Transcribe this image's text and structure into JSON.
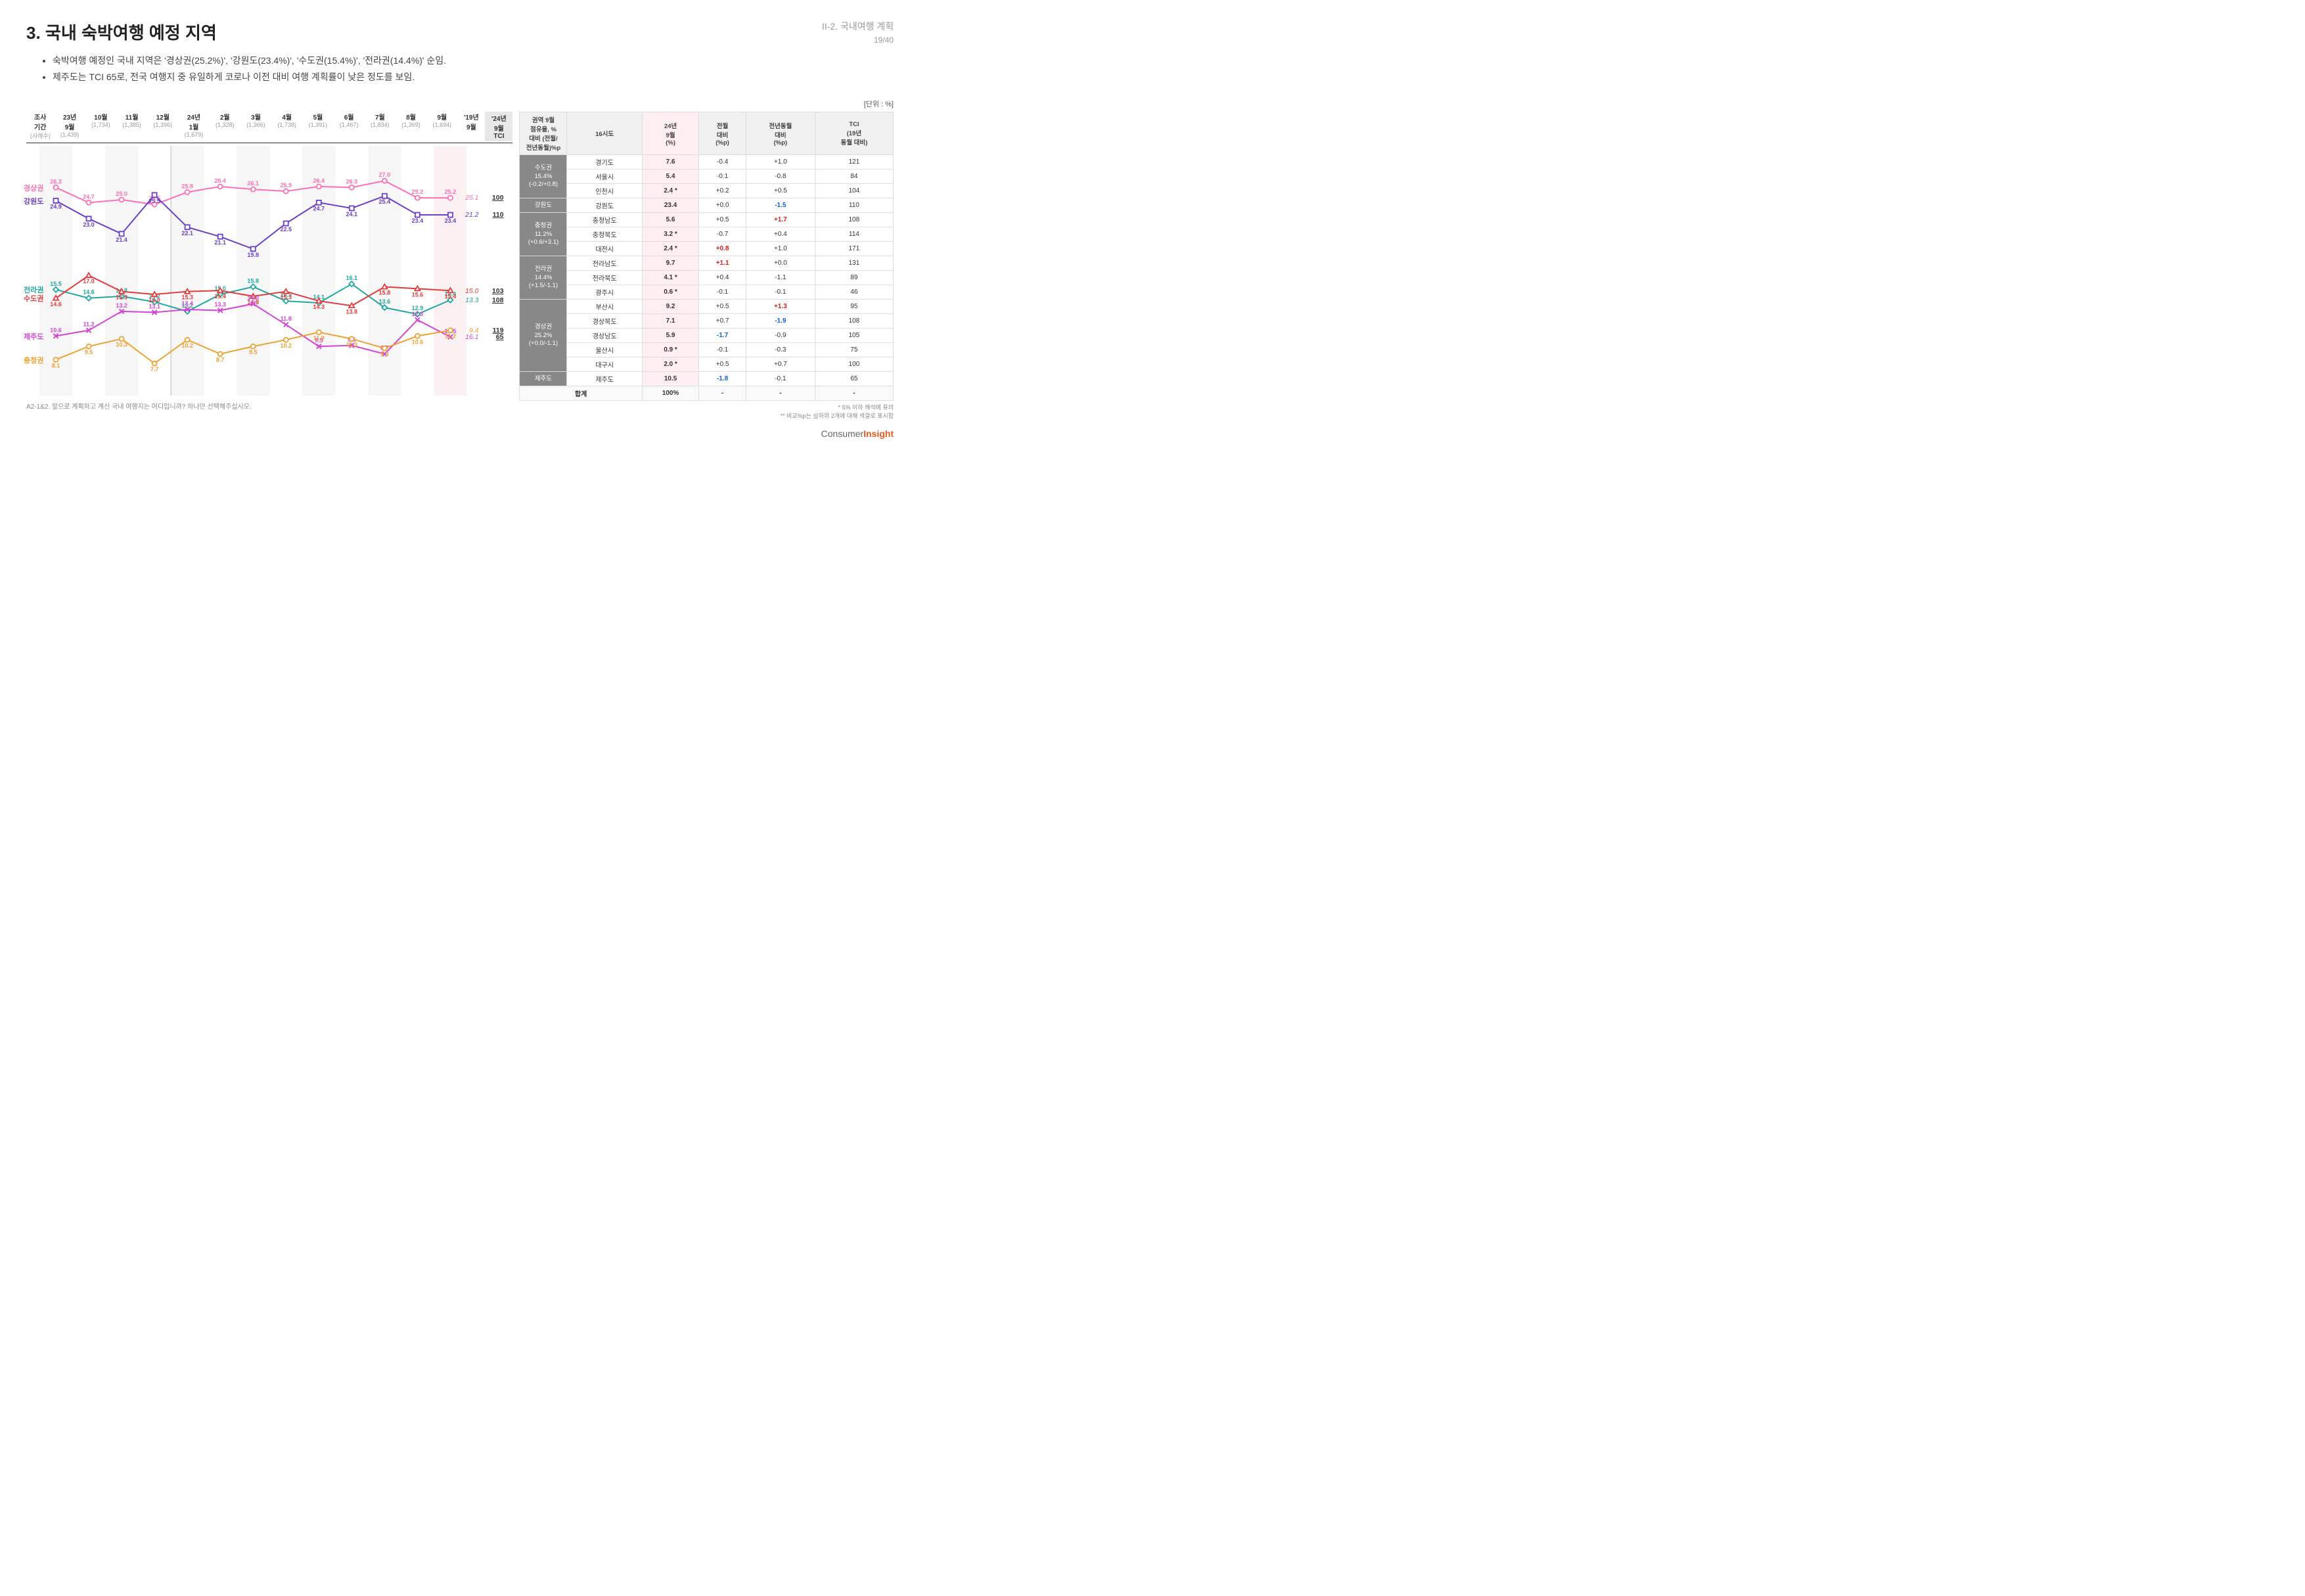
{
  "header": {
    "title": "3. 국내 숙박여행 예정 지역",
    "subtitle": "II-2. 국내여행 계획",
    "page": "19/40"
  },
  "bullets": [
    "숙박여행 예정인 국내 지역은 '경상권(25.2%)', '강원도(23.4%)', '수도권(15.4%)', '전라권(14.4%)' 순임.",
    "제주도는 TCI 65로, 전국 여행지 중 유일하게 코로나 이전 대비 여행 계획률이 낮은 정도를 보임."
  ],
  "unit": "[단위 : %]",
  "chart": {
    "period_label": "조사\n기간",
    "sample_label": "(사례수)",
    "periods": [
      {
        "label": "23년\n9월",
        "n": "(1,439)"
      },
      {
        "label": "10월",
        "n": "(1,734)"
      },
      {
        "label": "11월",
        "n": "(1,385)"
      },
      {
        "label": "12월",
        "n": "(1,396)"
      },
      {
        "label": "24년\n1월",
        "n": "(1,679)"
      },
      {
        "label": "2월",
        "n": "(1,328)"
      },
      {
        "label": "3월",
        "n": "(1,366)"
      },
      {
        "label": "4월",
        "n": "(1,738)"
      },
      {
        "label": "5월",
        "n": "(1,391)"
      },
      {
        "label": "6월",
        "n": "(1,467)"
      },
      {
        "label": "7월",
        "n": "(1,834)"
      },
      {
        "label": "8월",
        "n": "(1,369)"
      },
      {
        "label": "9월",
        "n": "(1,694)"
      }
    ],
    "year19_label": "'19년\n9월",
    "tci_label": "'24년\n9월\nTCI",
    "ylim": [
      5,
      30
    ],
    "series": [
      {
        "name": "경상권",
        "color": "#ff6fb5",
        "marker": "circle",
        "values": [
          26.3,
          24.7,
          25.0,
          24.5,
          25.8,
          26.4,
          26.1,
          25.9,
          26.4,
          26.3,
          27.0,
          25.2,
          25.2
        ],
        "y19": "25.1",
        "tci": "100"
      },
      {
        "name": "강원도",
        "color": "#6a3fc9",
        "marker": "square",
        "values": [
          24.9,
          23.0,
          21.4,
          25.5,
          22.1,
          21.1,
          19.8,
          22.5,
          24.7,
          24.1,
          25.4,
          23.4,
          23.4
        ],
        "y19": "21.2",
        "tci": "110"
      },
      {
        "name": "전라권",
        "color": "#1fa8a0",
        "marker": "diamond",
        "values": [
          15.5,
          14.6,
          14.8,
          14.2,
          13.2,
          15.0,
          15.8,
          14.3,
          14.1,
          16.1,
          13.6,
          12.9,
          14.4
        ],
        "y19": "13.3",
        "tci": "108"
      },
      {
        "name": "수도권",
        "color": "#e23b3b",
        "marker": "triangle",
        "values": [
          14.6,
          17.0,
          15.3,
          15.0,
          15.3,
          15.4,
          14.8,
          15.3,
          14.3,
          13.8,
          15.8,
          15.6,
          15.4
        ],
        "y19": "15.0",
        "tci": "103"
      },
      {
        "name": "제주도",
        "color": "#d444d4",
        "marker": "cross",
        "values": [
          10.6,
          11.2,
          13.2,
          13.1,
          13.4,
          13.3,
          14.0,
          11.8,
          9.5,
          9.6,
          8.7,
          12.3,
          10.5
        ],
        "y19": "16.1",
        "tci": "65"
      },
      {
        "name": "충청권",
        "color": "#f0a030",
        "marker": "circle",
        "values": [
          8.1,
          9.5,
          10.3,
          7.7,
          10.2,
          8.7,
          9.5,
          10.2,
          11.0,
          10.3,
          9.3,
          10.6,
          11.2
        ],
        "y19": "9.4",
        "tci": "119"
      }
    ]
  },
  "table": {
    "headers": {
      "region": "권역 9월\n점유율, %\n대비 (전월/\n전년동월)%p",
      "sido": "16시도",
      "sep24": "24년\n9월\n(%)",
      "mom": "전월\n대비\n(%p)",
      "yoy": "전년동월\n대비\n(%p)",
      "tci": "TCI\n(19년\n동월 대비)"
    },
    "regions": [
      {
        "name": "수도권",
        "share": "15.4%",
        "delta": "(-0.2/+0.8)",
        "rows": [
          {
            "sido": "경기도",
            "v": "7.6",
            "mom": "-0.4",
            "yoy": "+1.0",
            "tci": "121"
          },
          {
            "sido": "서울시",
            "v": "5.4",
            "mom": "-0.1",
            "yoy": "-0.8",
            "tci": "84"
          },
          {
            "sido": "인천시",
            "v": "2.4",
            "star": "*",
            "mom": "+0.2",
            "yoy": "+0.5",
            "tci": "104"
          }
        ]
      },
      {
        "name": "강원도",
        "share": "",
        "delta": "",
        "rows": [
          {
            "sido": "강원도",
            "v": "23.4",
            "mom": "+0.0",
            "yoy": "-1.5",
            "yoy_hl": "neg",
            "tci": "110"
          }
        ]
      },
      {
        "name": "충청권",
        "share": "11.2%",
        "delta": "(+0.6/+3.1)",
        "rows": [
          {
            "sido": "충청남도",
            "v": "5.6",
            "mom": "+0.5",
            "yoy": "+1.7",
            "yoy_hl": "pos",
            "tci": "108"
          },
          {
            "sido": "충청북도",
            "v": "3.2",
            "star": "*",
            "mom": "-0.7",
            "yoy": "+0.4",
            "tci": "114"
          },
          {
            "sido": "대전시",
            "v": "2.4",
            "star": "*",
            "mom": "+0.8",
            "mom_hl": "pos",
            "yoy": "+1.0",
            "tci": "171"
          }
        ]
      },
      {
        "name": "전라권",
        "share": "14.4%",
        "delta": "(+1.5/-1.1)",
        "rows": [
          {
            "sido": "전라남도",
            "v": "9.7",
            "mom": "+1.1",
            "mom_hl": "pos",
            "yoy": "+0.0",
            "tci": "131"
          },
          {
            "sido": "전라북도",
            "v": "4.1",
            "star": "*",
            "mom": "+0.4",
            "yoy": "-1.1",
            "tci": "89"
          },
          {
            "sido": "광주시",
            "v": "0.6",
            "star": "*",
            "mom": "-0.1",
            "yoy": "-0.1",
            "tci": "46"
          }
        ]
      },
      {
        "name": "경상권",
        "share": "25.2%",
        "delta": "(+0.0/-1.1)",
        "rows": [
          {
            "sido": "부산시",
            "v": "9.2",
            "mom": "+0.5",
            "yoy": "+1.3",
            "yoy_hl": "pos",
            "tci": "95"
          },
          {
            "sido": "경상북도",
            "v": "7.1",
            "mom": "+0.7",
            "yoy": "-1.9",
            "yoy_hl": "neg",
            "tci": "108"
          },
          {
            "sido": "경상남도",
            "v": "5.9",
            "mom": "-1.7",
            "mom_hl": "neg",
            "yoy": "-0.9",
            "tci": "105"
          },
          {
            "sido": "울산시",
            "v": "0.9",
            "star": "*",
            "mom": "-0.1",
            "yoy": "-0.3",
            "tci": "75"
          },
          {
            "sido": "대구시",
            "v": "2.0",
            "star": "*",
            "mom": "+0.5",
            "yoy": "+0.7",
            "tci": "100"
          }
        ]
      },
      {
        "name": "제주도",
        "share": "",
        "delta": "",
        "rows": [
          {
            "sido": "제주도",
            "v": "10.5",
            "mom": "-1.8",
            "mom_hl": "neg",
            "yoy": "-0.1",
            "tci": "65"
          }
        ]
      }
    ],
    "total": {
      "label": "합계",
      "v": "100%",
      "mom": "-",
      "yoy": "-",
      "tci": "-"
    }
  },
  "footnote": "A2-1&2. 앞으로 계획하고 계신 국내 여행지는 어디입니까? 하나만 선택해주십시오.",
  "table_footnote1": "* 5% 이하 해석에 유의",
  "table_footnote2": "** 비교%p는 상하위 2개에 대해 색깔로 표시함",
  "logo_pre": "Consumer",
  "logo_bold": "Insight"
}
